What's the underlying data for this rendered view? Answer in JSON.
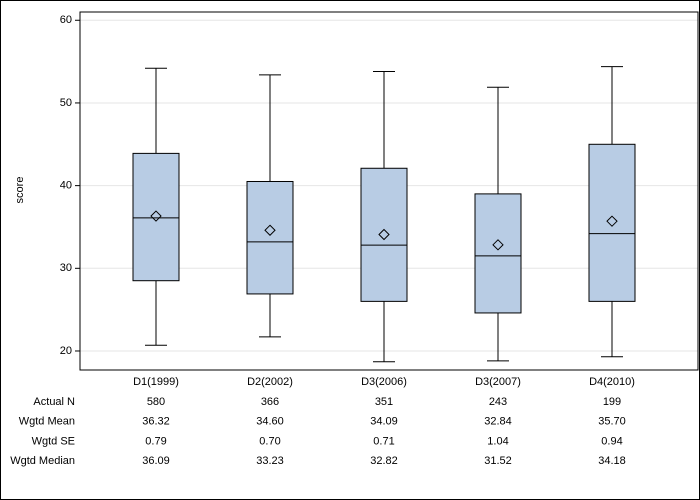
{
  "chart_data": {
    "type": "box",
    "y_label": "score",
    "categories": [
      "D1(1999)",
      "D2(2002)",
      "D3(2006)",
      "D3(2007)",
      "D4(2010)"
    ],
    "whisker_low": [
      20.7,
      21.7,
      18.7,
      18.8,
      19.3
    ],
    "q1": [
      28.5,
      26.9,
      26.0,
      24.6,
      26.0
    ],
    "median": [
      36.1,
      33.2,
      32.8,
      31.5,
      34.2
    ],
    "q3": [
      43.9,
      40.5,
      42.1,
      39.0,
      45.0
    ],
    "whisker_high": [
      54.2,
      53.4,
      53.8,
      51.9,
      54.4
    ],
    "mean": [
      36.32,
      34.6,
      34.09,
      32.84,
      35.7
    ],
    "color": "#b8cce4",
    "ylim": [
      17.7,
      61
    ],
    "yticks": [
      20,
      30,
      40,
      50,
      60
    ],
    "grid": true
  },
  "table": {
    "rows": [
      {
        "label": "Actual N",
        "cells": [
          "580",
          "366",
          "351",
          "243",
          "199"
        ]
      },
      {
        "label": "Wgtd Mean",
        "cells": [
          "36.32",
          "34.60",
          "34.09",
          "32.84",
          "35.70"
        ]
      },
      {
        "label": "Wgtd SE",
        "cells": [
          "0.79",
          "0.70",
          "0.71",
          "1.04",
          "0.94"
        ]
      },
      {
        "label": "Wgtd Median",
        "cells": [
          "36.09",
          "33.23",
          "32.82",
          "31.52",
          "34.18"
        ]
      }
    ]
  }
}
